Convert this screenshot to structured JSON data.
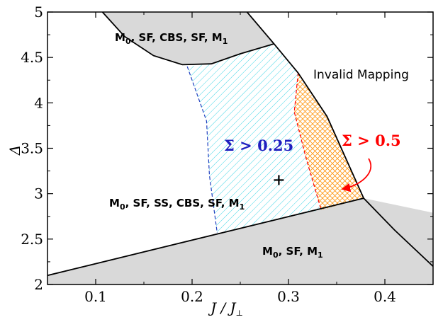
{
  "chart_data": {
    "type": "area",
    "title": "",
    "xlabel_main": "J / J",
    "xlabel_sub": "⊥",
    "ylabel": "Δ",
    "xlim": [
      0.05,
      0.45
    ],
    "ylim": [
      2,
      5
    ],
    "xticks": [
      {
        "value": 0.1,
        "label": "0.1"
      },
      {
        "value": 0.2,
        "label": "0.2"
      },
      {
        "value": 0.3,
        "label": "0.3"
      },
      {
        "value": 0.4,
        "label": "0.4"
      }
    ],
    "yticks": [
      {
        "value": 2,
        "label": "2"
      },
      {
        "value": 2.5,
        "label": "2.5"
      },
      {
        "value": 3,
        "label": "3"
      },
      {
        "value": 3.5,
        "label": "3.5"
      },
      {
        "value": 4,
        "label": "4"
      },
      {
        "value": 4.5,
        "label": "4.5"
      },
      {
        "value": 5,
        "label": "5"
      }
    ],
    "curves": {
      "lower_boundary": [
        [
          0.05,
          2.1
        ],
        [
          0.378,
          2.95
        ],
        [
          0.45,
          2.79
        ]
      ],
      "right_boundary": [
        [
          0.257,
          5.0
        ],
        [
          0.285,
          4.65
        ],
        [
          0.31,
          4.33
        ],
        [
          0.34,
          3.85
        ],
        [
          0.378,
          2.95
        ],
        [
          0.41,
          2.6
        ],
        [
          0.45,
          2.2
        ]
      ],
      "top_region_bottom": [
        [
          0.107,
          5.0
        ],
        [
          0.13,
          4.73
        ],
        [
          0.16,
          4.52
        ],
        [
          0.19,
          4.42
        ],
        [
          0.22,
          4.43
        ],
        [
          0.25,
          4.54
        ],
        [
          0.285,
          4.65
        ]
      ],
      "sigma_025_left": [
        [
          0.195,
          4.4
        ],
        [
          0.215,
          3.8
        ],
        [
          0.218,
          3.2
        ],
        [
          0.226,
          2.57
        ]
      ],
      "sigma_05_left": [
        [
          0.31,
          4.33
        ],
        [
          0.306,
          3.9
        ],
        [
          0.318,
          3.4
        ],
        [
          0.334,
          2.82
        ]
      ]
    },
    "marker": {
      "x": 0.29,
      "y": 3.15,
      "symbol": "+"
    },
    "labels": {
      "top_region": {
        "text": "M0, SF, CBS, SF, M1",
        "parts": [
          "M",
          "0",
          ", SF, CBS, SF, M",
          "1"
        ]
      },
      "middle_region": {
        "text": "M0, SF, SS, CBS, SF, M1",
        "parts": [
          "M",
          "0",
          ", SF, SS, CBS, SF, M",
          "1"
        ]
      },
      "bottom_region": {
        "text": "M0, SF, M1",
        "parts": [
          "M",
          "0",
          ", SF, M",
          "1"
        ]
      },
      "invalid": "Invalid Mapping",
      "sigma_025": {
        "symbol": "Σ",
        "rest": " > 0.25",
        "color": "#1f1fbf"
      },
      "sigma_05": {
        "symbol": "Σ",
        "rest": " > 0.5",
        "color": "#ff0000"
      }
    },
    "colors": {
      "gray_fill": "#d9d9d9",
      "cyan_hatch": "#44d6e6",
      "orange_hatch": "#ff9a1a",
      "blue_dash": "#1f3fbf",
      "red_dash": "#ff0000",
      "arrow": "#ff0000"
    },
    "grid": false,
    "legend": "none"
  }
}
